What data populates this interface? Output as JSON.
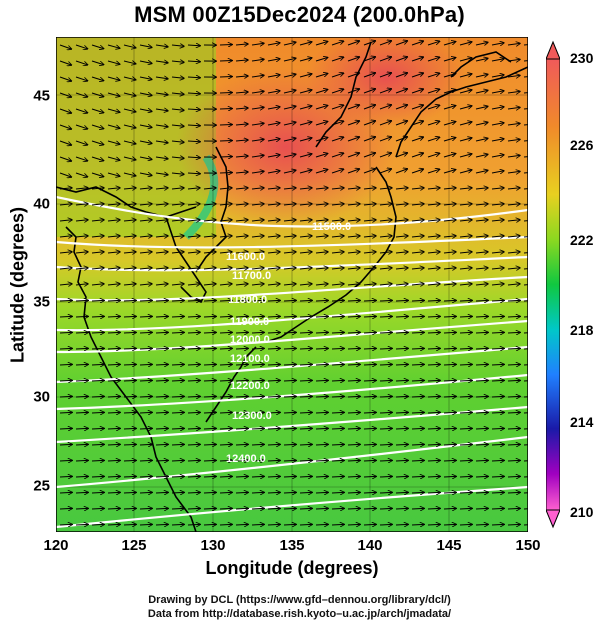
{
  "title": "MSM 00Z15Dec2024 (200.0hPa)",
  "x_axis": {
    "label": "Longitude (degrees)",
    "ticks": [
      "120",
      "125",
      "130",
      "135",
      "140",
      "145",
      "150"
    ]
  },
  "y_axis": {
    "label": "Latitude  (degrees)",
    "ticks": [
      "45",
      "40",
      "35",
      "30",
      "25"
    ]
  },
  "colorbar": {
    "ticks": [
      "230",
      "226",
      "222",
      "218",
      "214",
      "210"
    ],
    "colors": [
      "#f05a5a",
      "#f08a2a",
      "#e8d020",
      "#8cd820",
      "#10c840",
      "#00c8c8",
      "#2080ff",
      "#1a1aa8",
      "#a000c0",
      "#ff60d0"
    ]
  },
  "contour_labels": [
    "11500.0",
    "11600.0",
    "11700.0",
    "11800.0",
    "11900.0",
    "12000.0",
    "12100.0",
    "12200.0",
    "12300.0",
    "12400.0"
  ],
  "credits": [
    "Drawing by DCL (https://www.gfd–dennou.org/library/dcl/)",
    "Data from http://database.rish.kyoto–u.ac.jp/arch/jmadata/"
  ]
}
